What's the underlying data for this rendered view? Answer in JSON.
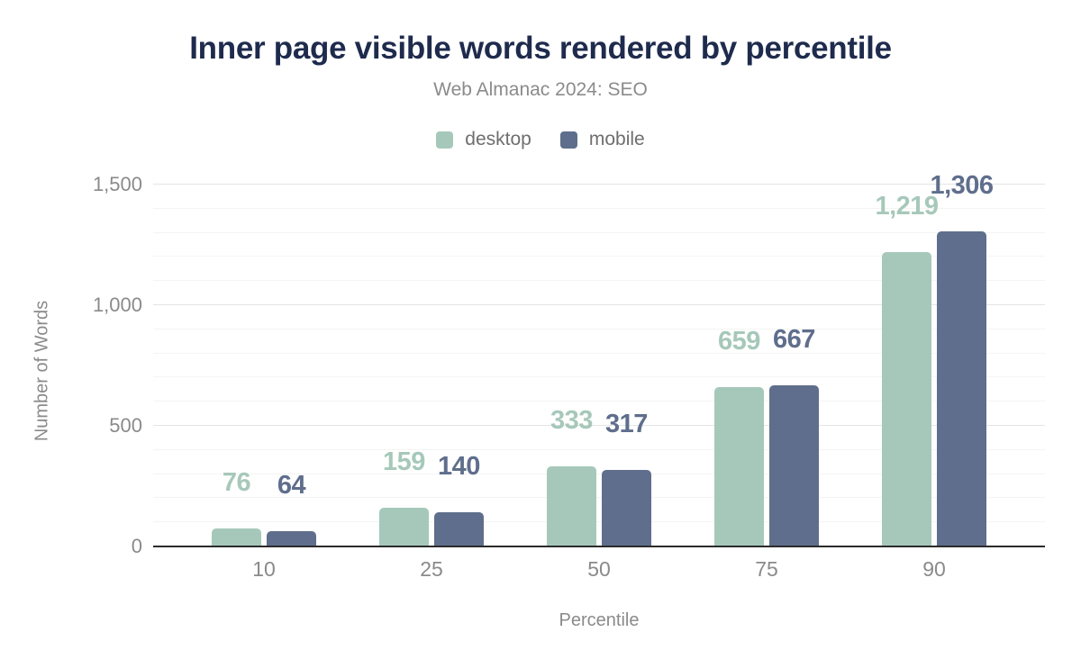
{
  "chart_data": {
    "type": "bar",
    "title": "Inner page visible words rendered by percentile",
    "subtitle": "Web Almanac 2024: SEO",
    "xlabel": "Percentile",
    "ylabel": "Number of Words",
    "categories": [
      "10",
      "25",
      "50",
      "75",
      "90"
    ],
    "series": [
      {
        "name": "desktop",
        "color": "#a6c8ba",
        "values": [
          76,
          159,
          333,
          659,
          1219
        ]
      },
      {
        "name": "mobile",
        "color": "#5f6e8c",
        "values": [
          64,
          140,
          317,
          667,
          1306
        ]
      }
    ],
    "data_labels": [
      [
        "76",
        "159",
        "333",
        "659",
        "1,219"
      ],
      [
        "64",
        "140",
        "317",
        "667",
        "1,306"
      ]
    ],
    "ylim": [
      0,
      1500
    ],
    "yticks": [
      "0",
      "500",
      "1,000",
      "1,500"
    ],
    "ytick_values": [
      0,
      500,
      1000,
      1500
    ],
    "minor_grid_step": 100,
    "grid": true,
    "legend_position": "top"
  },
  "colors": {
    "title": "#1e2b4d",
    "subtitle": "#8b8b8b",
    "axis_text": "#8a8a8a",
    "legend_text": "#6e6e6e",
    "axis_line": "#2b2b2b",
    "grid_major": "#e4e4e4",
    "grid_minor": "#f4f4f4",
    "background": "#ffffff"
  }
}
